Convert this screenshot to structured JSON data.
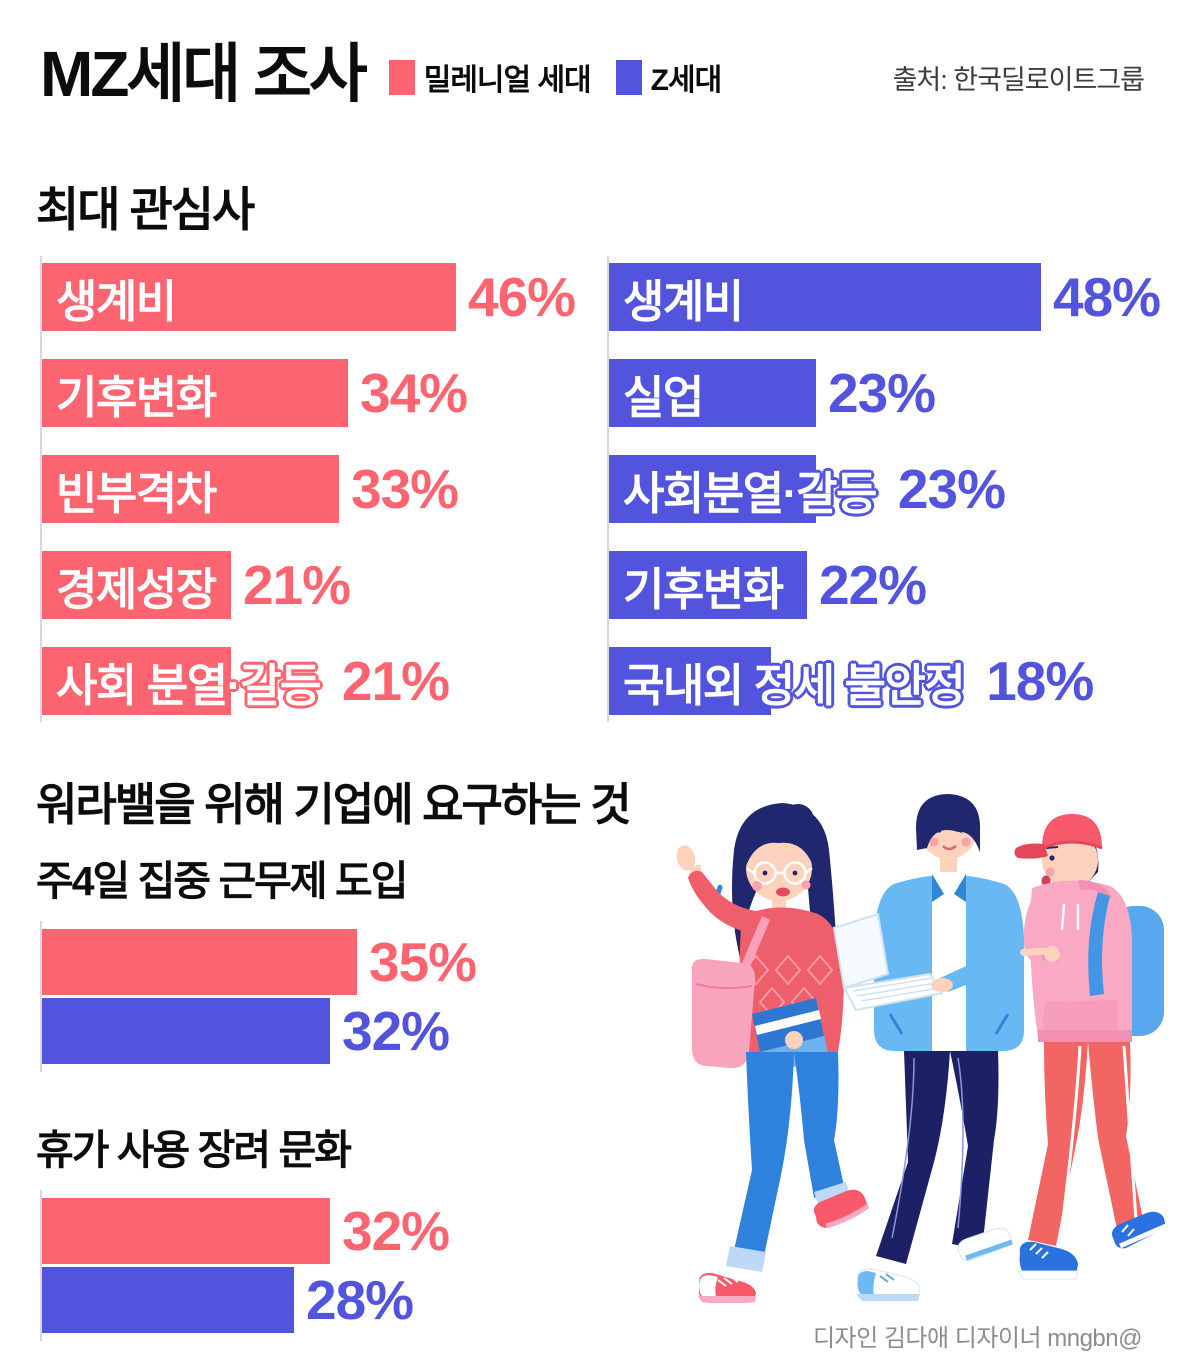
{
  "header": {
    "title": "MZ세대 조사",
    "legend": [
      {
        "label": "밀레니얼 세대",
        "color": "#fc6570"
      },
      {
        "label": "Z세대",
        "color": "#5254de"
      }
    ],
    "source": "출처: 한국딜로이트그룹"
  },
  "chart_data": [
    {
      "type": "bar",
      "title": "최대 관심사",
      "orientation": "horizontal",
      "unit": "%",
      "xlim": [
        0,
        50
      ],
      "grid": false,
      "series": [
        {
          "name": "밀레니얼 세대",
          "color": "#fc6570",
          "categories": [
            "생계비",
            "기후변화",
            "빈부격차",
            "경제성장",
            "사회 분열·갈등"
          ],
          "values": [
            46,
            34,
            33,
            21,
            21
          ]
        },
        {
          "name": "Z세대",
          "color": "#5254de",
          "categories": [
            "생계비",
            "실업",
            "사회분열·갈등",
            "기후변화",
            "국내외 정세 불안정"
          ],
          "values": [
            48,
            23,
            23,
            22,
            18
          ]
        }
      ]
    },
    {
      "type": "bar",
      "title": "워라밸을 위해 기업에 요구하는 것",
      "orientation": "horizontal",
      "unit": "%",
      "series_names": [
        "밀레니얼 세대",
        "Z세대"
      ],
      "groups": [
        {
          "label": "주4일 집중 근무제 도입",
          "millennial": 35,
          "genz": 32
        },
        {
          "label": "휴가 사용 장려 문화",
          "millennial": 32,
          "genz": 28
        }
      ]
    }
  ],
  "footer": {
    "credit": "디자인 김다애 디자이너 mngbn@"
  }
}
